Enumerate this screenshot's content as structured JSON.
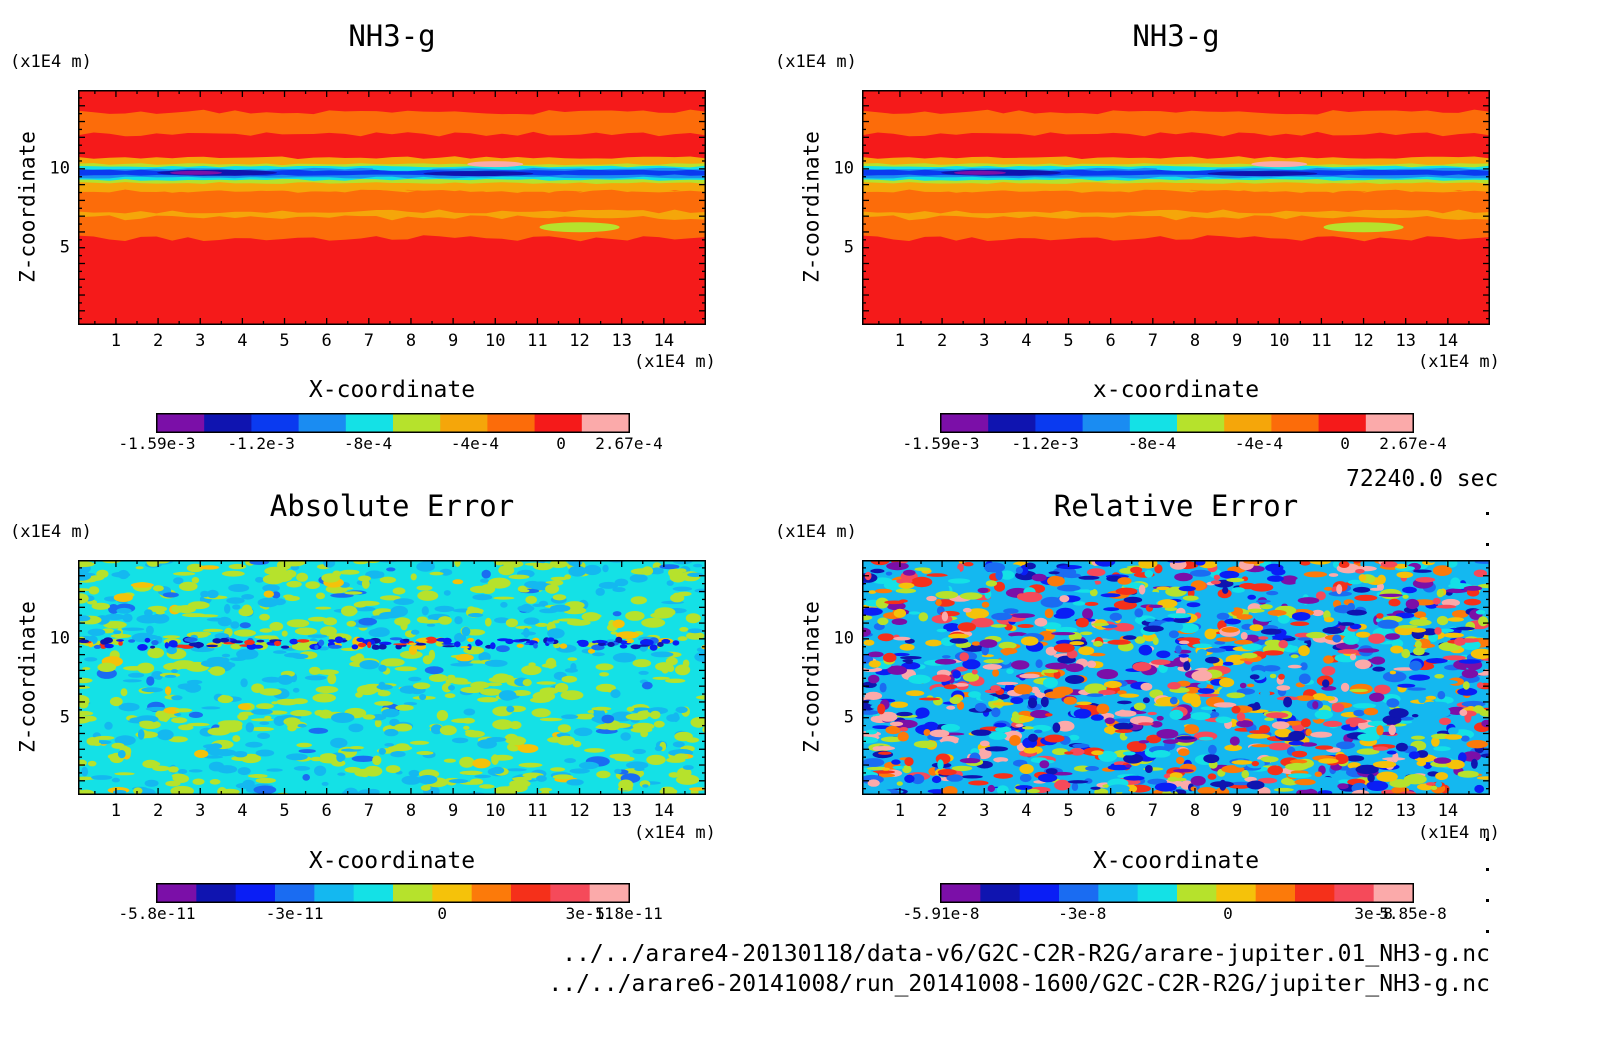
{
  "panels": [
    {
      "title": "NH3-g",
      "xlabel": "X-coordinate",
      "ylabel": "Z-coordinate",
      "x_unit": "(x1E4 m)",
      "y_unit": "(x1E4 m)"
    },
    {
      "title": "NH3-g",
      "xlabel": "x-coordinate",
      "ylabel": "Z-coordinate",
      "x_unit": "(x1E4 m)",
      "y_unit": "(x1E4 m)"
    },
    {
      "title": "Absolute Error",
      "xlabel": "X-coordinate",
      "ylabel": "Z-coordinate",
      "x_unit": "(x1E4 m)",
      "y_unit": "(x1E4 m)"
    },
    {
      "title": "Relative Error",
      "xlabel": "X-coordinate",
      "ylabel": "Z-coordinate",
      "x_unit": "(x1E4 m)",
      "y_unit": "(x1E4 m)"
    }
  ],
  "time_label": "72240.0 sec",
  "files": [
    "../../arare4-20130118/data-v6/G2C-C2R-R2G/arare-jupiter.01_NH3-g.nc",
    "../../arare6-20141008/run_20141008-1600/G2C-C2R-R2G/jupiter_NH3-g.nc"
  ],
  "chart_data": [
    {
      "type": "heatmap",
      "title": "NH3-g",
      "xlabel": "X-coordinate",
      "ylabel": "Z-coordinate",
      "x_ticks": [
        "1",
        "2",
        "3",
        "4",
        "5",
        "6",
        "7",
        "8",
        "9",
        "10",
        "11",
        "12",
        "13",
        "14"
      ],
      "y_ticks": [
        "5",
        "10"
      ],
      "xlim": [
        0.1,
        15.0
      ],
      "ylim": [
        0.1,
        15.0
      ],
      "colorbar": {
        "min": -0.00159,
        "max": 0.000267,
        "tick_labels": [
          "-1.59e-3",
          "-1.2e-3",
          "-8e-4",
          "-4e-4",
          "0",
          "2.67e-4"
        ],
        "tick_values": [
          -0.00159,
          -0.0012,
          -0.0008,
          -0.0004,
          0,
          0.000267
        ],
        "colors": [
          "#7b0fa8",
          "#0f14b0",
          "#0a3af0",
          "#1a8cf2",
          "#14e1e6",
          "#b6e22c",
          "#f5a60a",
          "#fc6c0a",
          "#f51a1a",
          "#fbaaaa"
        ]
      },
      "features": "Mostly red/orange field; sharp blue-purple minimum layer near z=9.7; orange bands at z=12.5 and z=7-8; yellow patch near x=12,z=6."
    },
    {
      "type": "heatmap",
      "title": "NH3-g",
      "xlabel": "x-coordinate",
      "ylabel": "Z-coordinate",
      "x_ticks": [
        "1",
        "2",
        "3",
        "4",
        "5",
        "6",
        "7",
        "8",
        "9",
        "10",
        "11",
        "12",
        "13",
        "14"
      ],
      "y_ticks": [
        "5",
        "10"
      ],
      "xlim": [
        0.1,
        15.0
      ],
      "ylim": [
        0.1,
        15.0
      ],
      "colorbar": {
        "min": -0.00159,
        "max": 0.000267,
        "tick_labels": [
          "-1.59e-3",
          "-1.2e-3",
          "-8e-4",
          "-4e-4",
          "0",
          "2.67e-4"
        ],
        "tick_values": [
          -0.00159,
          -0.0012,
          -0.0008,
          -0.0004,
          0,
          0.000267
        ],
        "colors": [
          "#7b0fa8",
          "#0f14b0",
          "#0a3af0",
          "#1a8cf2",
          "#14e1e6",
          "#b6e22c",
          "#f5a60a",
          "#fc6c0a",
          "#f51a1a",
          "#fbaaaa"
        ]
      },
      "features": "Identical to the first panel."
    },
    {
      "type": "heatmap",
      "title": "Absolute Error",
      "xlabel": "X-coordinate",
      "ylabel": "Z-coordinate",
      "x_ticks": [
        "1",
        "2",
        "3",
        "4",
        "5",
        "6",
        "7",
        "8",
        "9",
        "10",
        "11",
        "12",
        "13",
        "14"
      ],
      "y_ticks": [
        "5",
        "10"
      ],
      "xlim": [
        0.1,
        15.0
      ],
      "ylim": [
        0.1,
        15.0
      ],
      "colorbar": {
        "min": -5.8e-11,
        "max": 5.8e-11,
        "tick_labels": [
          "-5.8e-11",
          "-3e-11",
          "0",
          "3e-11",
          "5.8e-11"
        ],
        "tick_values": [
          -5.8e-11,
          -3e-11,
          0,
          3e-11,
          5.8e-11
        ],
        "colors": [
          "#7b0fa8",
          "#0f14b0",
          "#0a1ef5",
          "#1a6cf2",
          "#14b8f0",
          "#14e1e6",
          "#b6e22c",
          "#f5c20a",
          "#fc7a0a",
          "#f5301a",
          "#f54a5a",
          "#fbaaaa"
        ]
      },
      "features": "Near-zero noise (cyan/green); stronger signed errors along the layer at z~9.7."
    },
    {
      "type": "heatmap",
      "title": "Relative Error",
      "xlabel": "X-coordinate",
      "ylabel": "Z-coordinate",
      "x_ticks": [
        "1",
        "2",
        "3",
        "4",
        "5",
        "6",
        "7",
        "8",
        "9",
        "10",
        "11",
        "12",
        "13",
        "14"
      ],
      "y_ticks": [
        "5",
        "10"
      ],
      "xlim": [
        0.1,
        15.0
      ],
      "ylim": [
        0.1,
        15.0
      ],
      "colorbar": {
        "min": -5.91e-08,
        "max": 5.85e-08,
        "tick_labels": [
          "-5.91e-8",
          "-3e-8",
          "0",
          "3e-8",
          "5.85e-8"
        ],
        "tick_values": [
          -5.91e-08,
          -3e-08,
          0,
          3e-08,
          5.85e-08
        ],
        "colors": [
          "#7b0fa8",
          "#0f14b0",
          "#0a1ef5",
          "#1a6cf2",
          "#14b8f0",
          "#14e1e6",
          "#b6e22c",
          "#f5c20a",
          "#fc7a0a",
          "#f5301a",
          "#f54a5a",
          "#fbaaaa"
        ]
      },
      "features": "Uniform high-contrast random noise across the full range."
    }
  ]
}
